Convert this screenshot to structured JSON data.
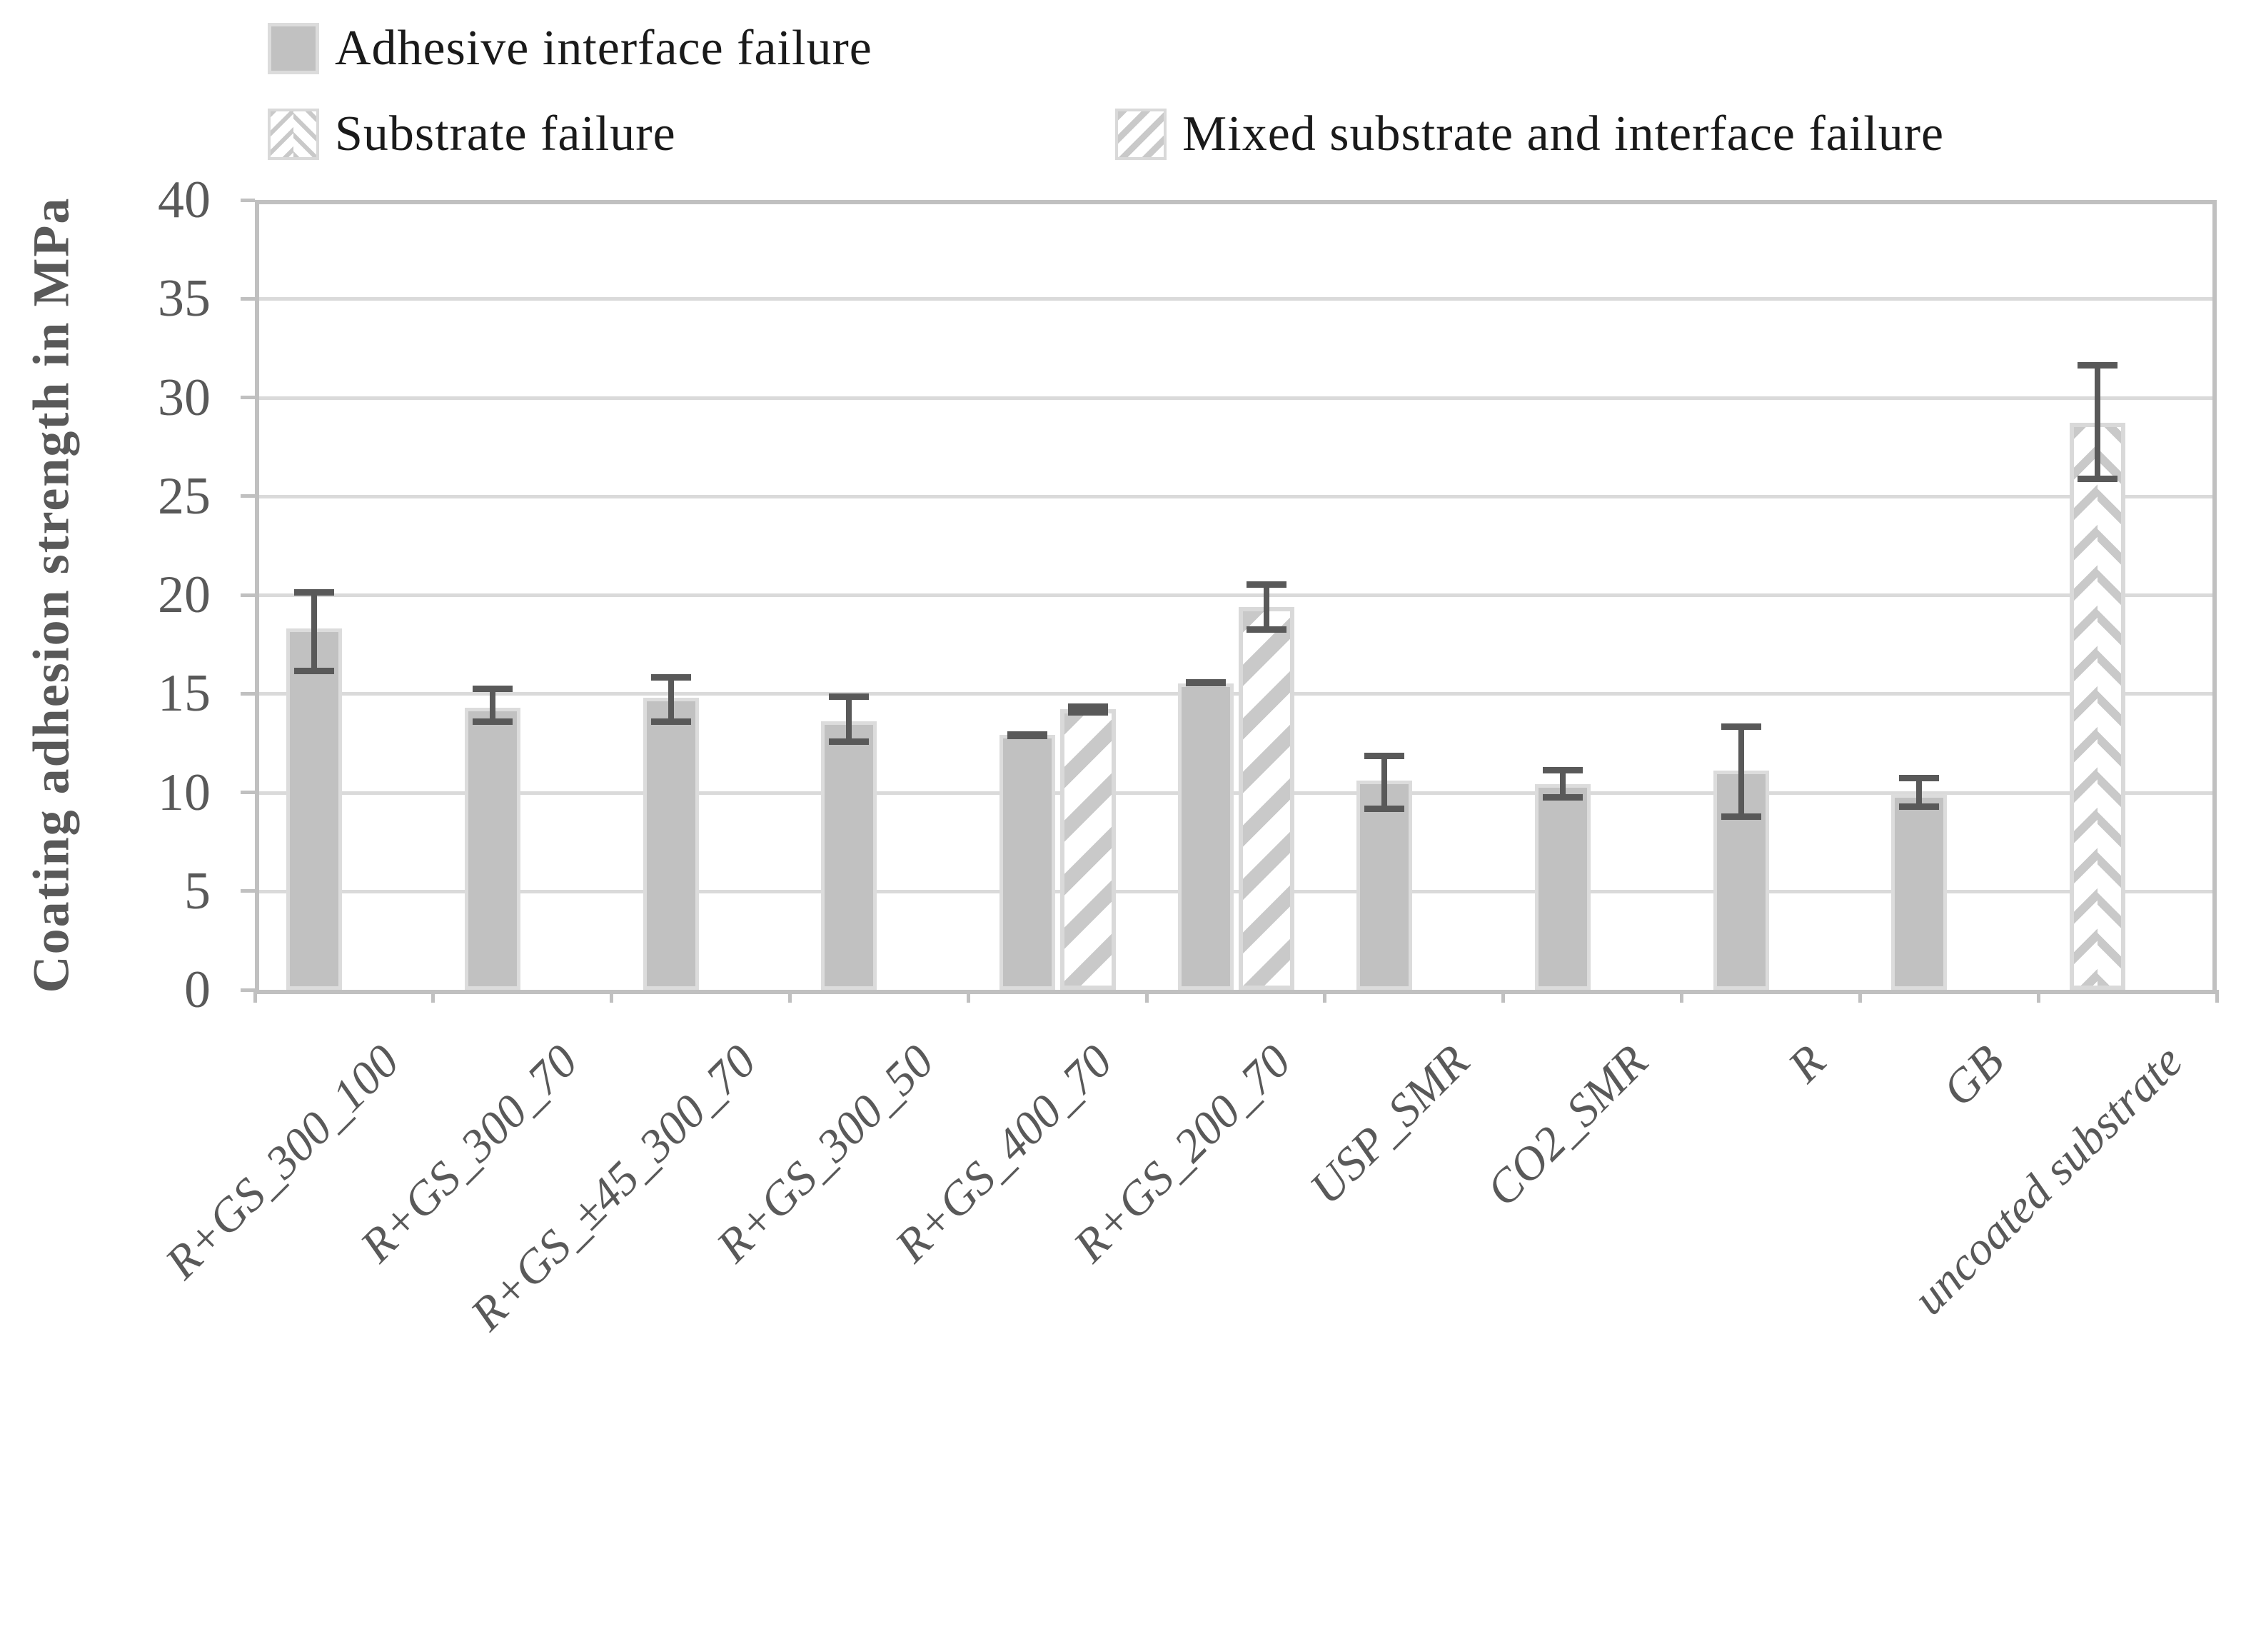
{
  "colors": {
    "bar_fill": "#c1c1c1",
    "bar_border": "#dcdcdc",
    "pattern_gray": "#c9c9c9",
    "error_bar": "#595959",
    "gridline": "#dadada",
    "frame": "#c0c0c0",
    "axis_text": "#595959",
    "legend_text": "#1a1a1a"
  },
  "chart_data": {
    "type": "bar",
    "title": "",
    "ylabel": "Coating adhesion strength in MPa",
    "xlabel": "",
    "ylim": [
      0,
      40
    ],
    "ytick_step": 5,
    "yticks": [
      0,
      5,
      10,
      15,
      20,
      25,
      30,
      35,
      40
    ],
    "grid": true,
    "legend_position": "top",
    "legend": [
      {
        "label": "Adhesive interface failure",
        "series": "adhesive",
        "pattern": "solid"
      },
      {
        "label": "Substrate failure",
        "series": "substrate",
        "pattern": "chevron"
      },
      {
        "label": "Mixed substrate and interface failure",
        "series": "mixed",
        "pattern": "diagonal-stripes"
      }
    ],
    "categories": [
      "R+GS_300_100",
      "R+GS_300_70",
      "R+GS_±45_300_70",
      "R+GS_300_50",
      "R+GS_400_70",
      "R+GS_200_70",
      "USP_SMR",
      "CO2_SMR",
      "R",
      "GB",
      "uncoated substrate"
    ],
    "bars": [
      {
        "category_index": 0,
        "category": "R+GS_300_100",
        "series": "adhesive",
        "value": 18.3,
        "err_high": 20.3,
        "err_low": 16.0,
        "position": "primary"
      },
      {
        "category_index": 1,
        "category": "R+GS_300_70",
        "series": "adhesive",
        "value": 14.3,
        "err_high": 15.4,
        "err_low": 13.4,
        "position": "primary"
      },
      {
        "category_index": 2,
        "category": "R+GS_±45_300_70",
        "series": "adhesive",
        "value": 14.8,
        "err_high": 16.0,
        "err_low": 13.4,
        "position": "primary"
      },
      {
        "category_index": 3,
        "category": "R+GS_300_50",
        "series": "adhesive",
        "value": 13.6,
        "err_high": 15.0,
        "err_low": 12.4,
        "position": "primary"
      },
      {
        "category_index": 4,
        "category": "R+GS_400_70",
        "series": "adhesive",
        "value": 12.9,
        "err_high": 13.1,
        "err_low": 12.7,
        "position": "primary"
      },
      {
        "category_index": 4,
        "category": "R+GS_400_70",
        "series": "mixed",
        "value": 14.2,
        "err_high": 14.5,
        "err_low": 13.9,
        "position": "secondary"
      },
      {
        "category_index": 5,
        "category": "R+GS_200_70",
        "series": "adhesive",
        "value": 15.5,
        "err_high": 15.7,
        "err_low": 15.4,
        "position": "primary"
      },
      {
        "category_index": 5,
        "category": "R+GS_200_70",
        "series": "mixed",
        "value": 19.4,
        "err_high": 20.7,
        "err_low": 18.1,
        "position": "secondary"
      },
      {
        "category_index": 6,
        "category": "USP_SMR",
        "series": "adhesive",
        "value": 10.6,
        "err_high": 12.0,
        "err_low": 9.0,
        "position": "primary"
      },
      {
        "category_index": 7,
        "category": "CO2_SMR",
        "series": "adhesive",
        "value": 10.4,
        "err_high": 11.3,
        "err_low": 9.6,
        "position": "primary"
      },
      {
        "category_index": 8,
        "category": "R",
        "series": "adhesive",
        "value": 11.1,
        "err_high": 13.5,
        "err_low": 8.6,
        "position": "primary"
      },
      {
        "category_index": 9,
        "category": "GB",
        "series": "adhesive",
        "value": 9.9,
        "err_high": 10.9,
        "err_low": 9.1,
        "position": "primary"
      },
      {
        "category_index": 10,
        "category": "uncoated substrate",
        "series": "substrate",
        "value": 28.7,
        "err_high": 31.8,
        "err_low": 25.7,
        "position": "primary"
      }
    ]
  }
}
